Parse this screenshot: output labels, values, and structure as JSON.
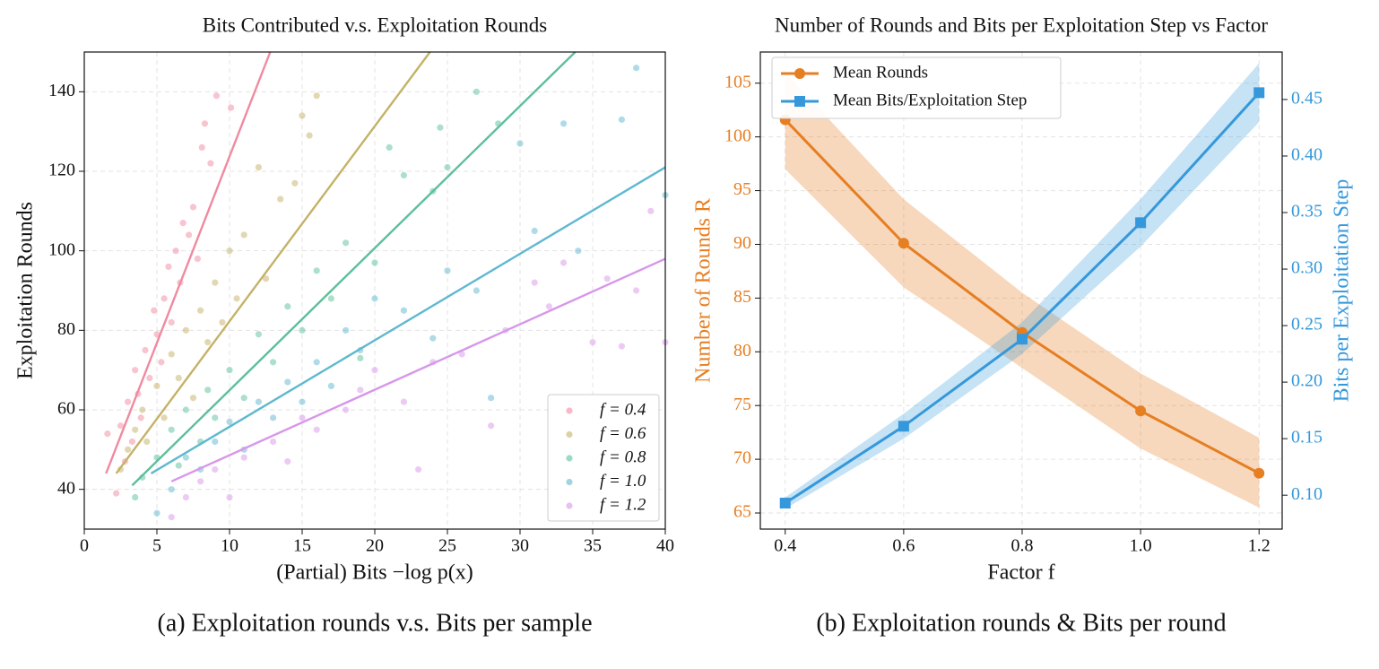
{
  "chart_data": [
    {
      "type": "scatter",
      "title": "Bits Contributed v.s. Exploitation Rounds",
      "x_label": "(Partial) Bits −log p(x)",
      "y_label": "Exploitation Rounds",
      "caption": "(a) Exploitation rounds v.s. Bits per sample",
      "xlim": [
        0,
        40
      ],
      "ylim": [
        30,
        150
      ],
      "xticks": [
        0,
        5,
        10,
        15,
        20,
        25,
        30,
        35,
        40
      ],
      "yticks": [
        40,
        60,
        80,
        100,
        120,
        140
      ],
      "grid": true,
      "legend": "lower right",
      "series": [
        {
          "name": "f = 0.4",
          "color": "#f08aa0",
          "x": [
            1.6,
            2.2,
            2.5,
            2.8,
            3.0,
            3.3,
            3.5,
            3.7,
            3.9,
            4.2,
            4.5,
            4.8,
            5.0,
            5.3,
            5.5,
            5.8,
            6.0,
            6.3,
            6.6,
            6.8,
            7.2,
            7.5,
            7.8,
            8.1,
            8.3,
            8.7,
            9.1,
            10.1
          ],
          "values": [
            54,
            39,
            56,
            47,
            62,
            52,
            70,
            64,
            58,
            75,
            68,
            85,
            79,
            72,
            88,
            96,
            82,
            100,
            92,
            107,
            104,
            111,
            98,
            126,
            132,
            122,
            139,
            136
          ],
          "fit": {
            "x": [
              1.5,
              12.8
            ],
            "values": [
              44,
              150
            ]
          }
        },
        {
          "name": "f = 0.6",
          "color": "#c4b266",
          "x": [
            2.5,
            3.0,
            3.5,
            4.0,
            4.3,
            5.0,
            5.5,
            6.0,
            6.5,
            7.0,
            7.5,
            8.0,
            8.5,
            9.0,
            9.5,
            10.0,
            10.5,
            11.0,
            12.0,
            12.5,
            13.5,
            14.5,
            15.0,
            15.5,
            16.0
          ],
          "values": [
            45,
            50,
            55,
            60,
            52,
            66,
            58,
            74,
            68,
            80,
            63,
            85,
            77,
            92,
            82,
            100,
            88,
            104,
            121,
            93,
            113,
            117,
            134,
            129,
            139
          ],
          "fit": {
            "x": [
              2.2,
              23.8
            ],
            "values": [
              44,
              150
            ]
          }
        },
        {
          "name": "f = 0.8",
          "color": "#5cbf9b",
          "x": [
            3.5,
            4.0,
            5.0,
            6.0,
            6.5,
            7.0,
            8.0,
            8.5,
            9.0,
            10.0,
            11.0,
            12.0,
            13.0,
            14.0,
            15.0,
            16.0,
            17.0,
            18.0,
            19.0,
            20.0,
            21.0,
            22.0,
            24.0,
            24.5,
            25.0,
            27.0,
            28.5
          ],
          "values": [
            38,
            43,
            48,
            55,
            46,
            60,
            52,
            65,
            58,
            70,
            63,
            79,
            72,
            86,
            80,
            95,
            88,
            102,
            73,
            97,
            126,
            119,
            115,
            131,
            121,
            140,
            132
          ],
          "fit": {
            "x": [
              3.3,
              33.8
            ],
            "values": [
              41,
              150
            ]
          }
        },
        {
          "name": "f = 1.0",
          "color": "#5fb8d0",
          "x": [
            5,
            6,
            7,
            8,
            9,
            10,
            11,
            12,
            13,
            14,
            15,
            16,
            17,
            18,
            19,
            20,
            22,
            24,
            25,
            27,
            28,
            30,
            31,
            33,
            34,
            37,
            38,
            40
          ],
          "values": [
            34,
            40,
            48,
            45,
            52,
            57,
            50,
            62,
            58,
            67,
            62,
            72,
            66,
            80,
            75,
            88,
            85,
            78,
            95,
            90,
            63,
            127,
            105,
            132,
            100,
            133,
            146,
            114
          ],
          "fit": {
            "x": [
              4.6,
              40
            ],
            "values": [
              44,
              121
            ]
          }
        },
        {
          "name": "f = 1.2",
          "color": "#d797ea",
          "x": [
            6,
            7,
            8,
            9,
            10,
            11,
            13,
            14,
            15,
            16,
            18,
            19,
            20,
            22,
            23,
            24,
            26,
            28,
            29,
            31,
            32,
            33,
            35,
            36,
            37,
            38,
            39,
            40
          ],
          "values": [
            33,
            38,
            42,
            45,
            38,
            48,
            52,
            47,
            58,
            55,
            60,
            65,
            70,
            62,
            45,
            72,
            74,
            56,
            80,
            92,
            86,
            97,
            77,
            93,
            76,
            90,
            110,
            77
          ],
          "fit": {
            "x": [
              6,
              40
            ],
            "values": [
              42,
              98
            ]
          }
        }
      ]
    },
    {
      "type": "line",
      "title": "Number of Rounds and Bits per Exploitation Step vs Factor",
      "x_label": "Factor f",
      "y_label": "Number of Rounds R",
      "y2_label": "Bits per Exploitation Step",
      "caption": "(b) Exploitation rounds & Bits per round",
      "x": [
        0.4,
        0.6,
        0.8,
        1.0,
        1.2
      ],
      "xlim": [
        0.358,
        1.239
      ],
      "ylim": [
        63.5,
        107.9
      ],
      "y2lim": [
        0.07,
        0.492
      ],
      "xticks": [
        0.4,
        0.6,
        0.8,
        {
          "value": 1,
          "label": "1.0"
        },
        1.2
      ],
      "yticks": [
        65,
        70,
        75,
        80,
        85,
        90,
        95,
        100,
        105
      ],
      "y2ticks": [
        {
          "value": 0.1,
          "label": "0.10"
        },
        0.15,
        {
          "value": 0.2,
          "label": "0.20"
        },
        0.25,
        {
          "value": 0.3,
          "label": "0.30"
        },
        0.35,
        {
          "value": 0.4,
          "label": "0.40"
        },
        0.45
      ],
      "grid": true,
      "legend": "upper left",
      "series": [
        {
          "name": "Mean Rounds",
          "color": "#e67e22",
          "marker": "circle",
          "axis": "y",
          "values": [
            101.6,
            90.1,
            81.8,
            74.5,
            68.7
          ],
          "lower": [
            97,
            86,
            78.5,
            71,
            65.5
          ],
          "upper": [
            106,
            94.2,
            85.5,
            78,
            72
          ]
        },
        {
          "name": "Mean Bits/Exploitation Step",
          "color": "#3498db",
          "marker": "square",
          "axis": "y2",
          "values": [
            0.093,
            0.161,
            0.238,
            0.341,
            0.456
          ],
          "lower": [
            0.088,
            0.15,
            0.225,
            0.32,
            0.43
          ],
          "upper": [
            0.098,
            0.172,
            0.253,
            0.362,
            0.482
          ]
        }
      ]
    }
  ]
}
